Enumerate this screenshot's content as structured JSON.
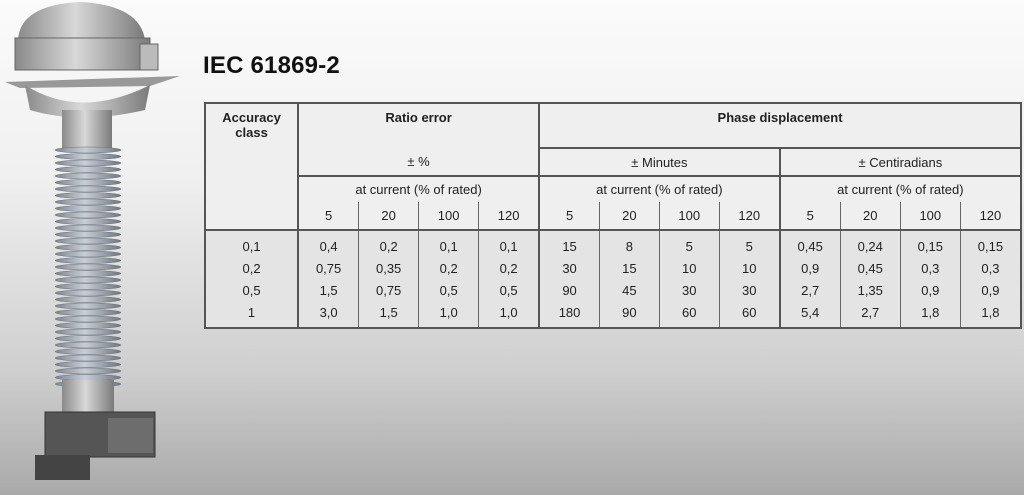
{
  "title": "IEC 61869-2",
  "table": {
    "accuracy_class_header": "Accuracy class",
    "ratio_error_header": "Ratio error",
    "ratio_error_unit": "± %",
    "phase_displacement_header": "Phase displacement",
    "minutes_unit": "± Minutes",
    "centiradians_unit": "± Centiradians",
    "at_current_label": "at current (% of rated)",
    "currents": [
      "5",
      "20",
      "100",
      "120"
    ],
    "rows": [
      {
        "class": "0,1",
        "ratio": [
          "0,4",
          "0,2",
          "0,1",
          "0,1"
        ],
        "minutes": [
          "15",
          "8",
          "5",
          "5"
        ],
        "centiradians": [
          "0,45",
          "0,24",
          "0,15",
          "0,15"
        ]
      },
      {
        "class": "0,2",
        "ratio": [
          "0,75",
          "0,35",
          "0,2",
          "0,2"
        ],
        "minutes": [
          "30",
          "15",
          "10",
          "10"
        ],
        "centiradians": [
          "0,9",
          "0,45",
          "0,3",
          "0,3"
        ]
      },
      {
        "class": "0,5",
        "ratio": [
          "1,5",
          "0,75",
          "0,5",
          "0,5"
        ],
        "minutes": [
          "90",
          "45",
          "30",
          "30"
        ],
        "centiradians": [
          "2,7",
          "1,35",
          "0,9",
          "0,9"
        ]
      },
      {
        "class": "1",
        "ratio": [
          "3,0",
          "1,5",
          "1,0",
          "1,0"
        ],
        "minutes": [
          "180",
          "90",
          "60",
          "60"
        ],
        "centiradians": [
          "5,4",
          "2,7",
          "1,8",
          "1,8"
        ]
      }
    ]
  }
}
